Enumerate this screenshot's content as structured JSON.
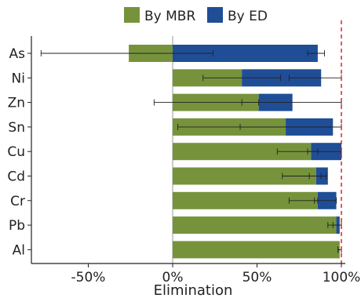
{
  "chart_data": {
    "type": "bar",
    "orientation": "horizontal",
    "stacked": true,
    "categories": [
      "As",
      "Ni",
      "Zn",
      "Sn",
      "Cu",
      "Cd",
      "Cr",
      "Pb",
      "Al"
    ],
    "series": [
      {
        "name": "By MBR",
        "color": "#76933c",
        "values": [
          -26,
          41,
          51,
          67,
          82,
          85,
          86,
          97,
          99
        ],
        "error": [
          [
            -78,
            24
          ],
          [
            18,
            64
          ],
          [
            -11,
            51
          ],
          [
            3,
            100
          ],
          [
            62,
            86
          ],
          [
            65,
            88
          ],
          [
            69,
            86
          ],
          [
            92,
            100
          ],
          [
            98,
            100
          ]
        ]
      },
      {
        "name": "By ED",
        "color": "#1f4e96",
        "values": [
          86,
          47,
          20,
          28,
          18,
          7,
          11,
          2,
          0
        ],
        "error": [
          [
            80,
            90
          ],
          [
            69,
            100
          ],
          [
            41,
            100
          ],
          [
            40,
            100
          ],
          [
            80,
            100
          ],
          [
            81,
            91
          ],
          [
            84,
            97
          ],
          [
            95,
            100
          ],
          [
            98,
            100
          ]
        ]
      }
    ],
    "xlabel": "Elimination",
    "xlim": [
      -83,
      100
    ],
    "xticks": [
      -50,
      0,
      50,
      100
    ],
    "xtick_labels": [
      "-50%",
      "0%",
      "50%",
      "100%"
    ],
    "reference_line": 100,
    "legend_position": "top-center",
    "grid": false
  }
}
